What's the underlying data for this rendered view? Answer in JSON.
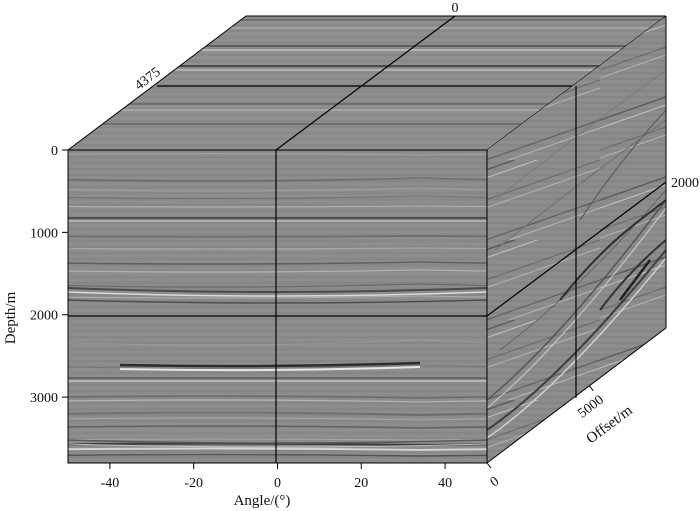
{
  "figure": {
    "depth_axis": {
      "label": "Depth/m",
      "ticks": [
        {
          "value": 0,
          "label": "0"
        },
        {
          "value": 1000,
          "label": "1000"
        },
        {
          "value": 2000,
          "label": "2000"
        },
        {
          "value": 3000,
          "label": "3000"
        }
      ],
      "range": [
        0,
        3800
      ]
    },
    "angle_axis": {
      "label": "Angle/(°)",
      "ticks": [
        {
          "value": -40,
          "label": "-40"
        },
        {
          "value": -20,
          "label": "-20"
        },
        {
          "value": 0,
          "label": "0"
        },
        {
          "value": 20,
          "label": "20"
        },
        {
          "value": 40,
          "label": "40"
        }
      ],
      "range": [
        -50,
        50
      ]
    },
    "offset_axis": {
      "label": "Offset/m",
      "ticks": [
        {
          "value": 0,
          "label": "0"
        },
        {
          "value": 5000,
          "label": "5000"
        }
      ],
      "range": [
        0,
        8750
      ]
    },
    "edge_labels": {
      "top_back": "0",
      "top_left": "4375",
      "right_depth": "2000"
    },
    "slices": {
      "angle": 0,
      "depth": 2000,
      "offset": 4375
    },
    "colors": {
      "background_gray": "#8a8a8a",
      "line": "#000000"
    }
  }
}
